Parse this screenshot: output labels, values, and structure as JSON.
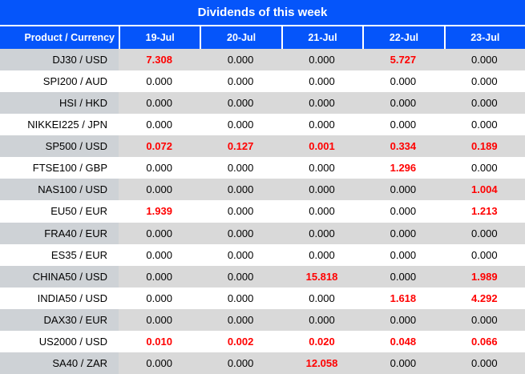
{
  "title": "Dividends of this week",
  "colors": {
    "header-blue": "#0555fa",
    "header-text": "#ffffff",
    "row-gray": "#d9d9d9",
    "label-gray": "#ced2d6",
    "value-red": "#ff0000",
    "body-text": "#000000"
  },
  "columns": [
    "Product / Currency",
    "19-Jul",
    "20-Jul",
    "21-Jul",
    "22-Jul",
    "23-Jul"
  ],
  "rows": [
    {
      "product": "DJ30 / USD",
      "values": [
        "7.308",
        "0.000",
        "0.000",
        "5.727",
        "0.000"
      ],
      "red": [
        true,
        false,
        false,
        true,
        false
      ]
    },
    {
      "product": "SPI200 / AUD",
      "values": [
        "0.000",
        "0.000",
        "0.000",
        "0.000",
        "0.000"
      ],
      "red": [
        false,
        false,
        false,
        false,
        false
      ]
    },
    {
      "product": "HSI / HKD",
      "values": [
        "0.000",
        "0.000",
        "0.000",
        "0.000",
        "0.000"
      ],
      "red": [
        false,
        false,
        false,
        false,
        false
      ]
    },
    {
      "product": "NIKKEI225 / JPN",
      "values": [
        "0.000",
        "0.000",
        "0.000",
        "0.000",
        "0.000"
      ],
      "red": [
        false,
        false,
        false,
        false,
        false
      ]
    },
    {
      "product": "SP500 / USD",
      "values": [
        "0.072",
        "0.127",
        "0.001",
        "0.334",
        "0.189"
      ],
      "red": [
        true,
        true,
        true,
        true,
        true
      ]
    },
    {
      "product": "FTSE100 / GBP",
      "values": [
        "0.000",
        "0.000",
        "0.000",
        "1.296",
        "0.000"
      ],
      "red": [
        false,
        false,
        false,
        true,
        false
      ]
    },
    {
      "product": "NAS100 / USD",
      "values": [
        "0.000",
        "0.000",
        "0.000",
        "0.000",
        "1.004"
      ],
      "red": [
        false,
        false,
        false,
        false,
        true
      ]
    },
    {
      "product": "EU50 / EUR",
      "values": [
        "1.939",
        "0.000",
        "0.000",
        "0.000",
        "1.213"
      ],
      "red": [
        true,
        false,
        false,
        false,
        true
      ]
    },
    {
      "product": "FRA40 / EUR",
      "values": [
        "0.000",
        "0.000",
        "0.000",
        "0.000",
        "0.000"
      ],
      "red": [
        false,
        false,
        false,
        false,
        false
      ]
    },
    {
      "product": "ES35 / EUR",
      "values": [
        "0.000",
        "0.000",
        "0.000",
        "0.000",
        "0.000"
      ],
      "red": [
        false,
        false,
        false,
        false,
        false
      ]
    },
    {
      "product": "CHINA50 / USD",
      "values": [
        "0.000",
        "0.000",
        "15.818",
        "0.000",
        "1.989"
      ],
      "red": [
        false,
        false,
        true,
        false,
        true
      ]
    },
    {
      "product": "INDIA50 / USD",
      "values": [
        "0.000",
        "0.000",
        "0.000",
        "1.618",
        "4.292"
      ],
      "red": [
        false,
        false,
        false,
        true,
        true
      ]
    },
    {
      "product": "DAX30 / EUR",
      "values": [
        "0.000",
        "0.000",
        "0.000",
        "0.000",
        "0.000"
      ],
      "red": [
        false,
        false,
        false,
        false,
        false
      ]
    },
    {
      "product": "US2000 / USD",
      "values": [
        "0.010",
        "0.002",
        "0.020",
        "0.048",
        "0.066"
      ],
      "red": [
        true,
        true,
        true,
        true,
        true
      ]
    },
    {
      "product": "SA40 / ZAR",
      "values": [
        "0.000",
        "0.000",
        "12.058",
        "0.000",
        "0.000"
      ],
      "red": [
        false,
        false,
        true,
        false,
        false
      ]
    }
  ]
}
